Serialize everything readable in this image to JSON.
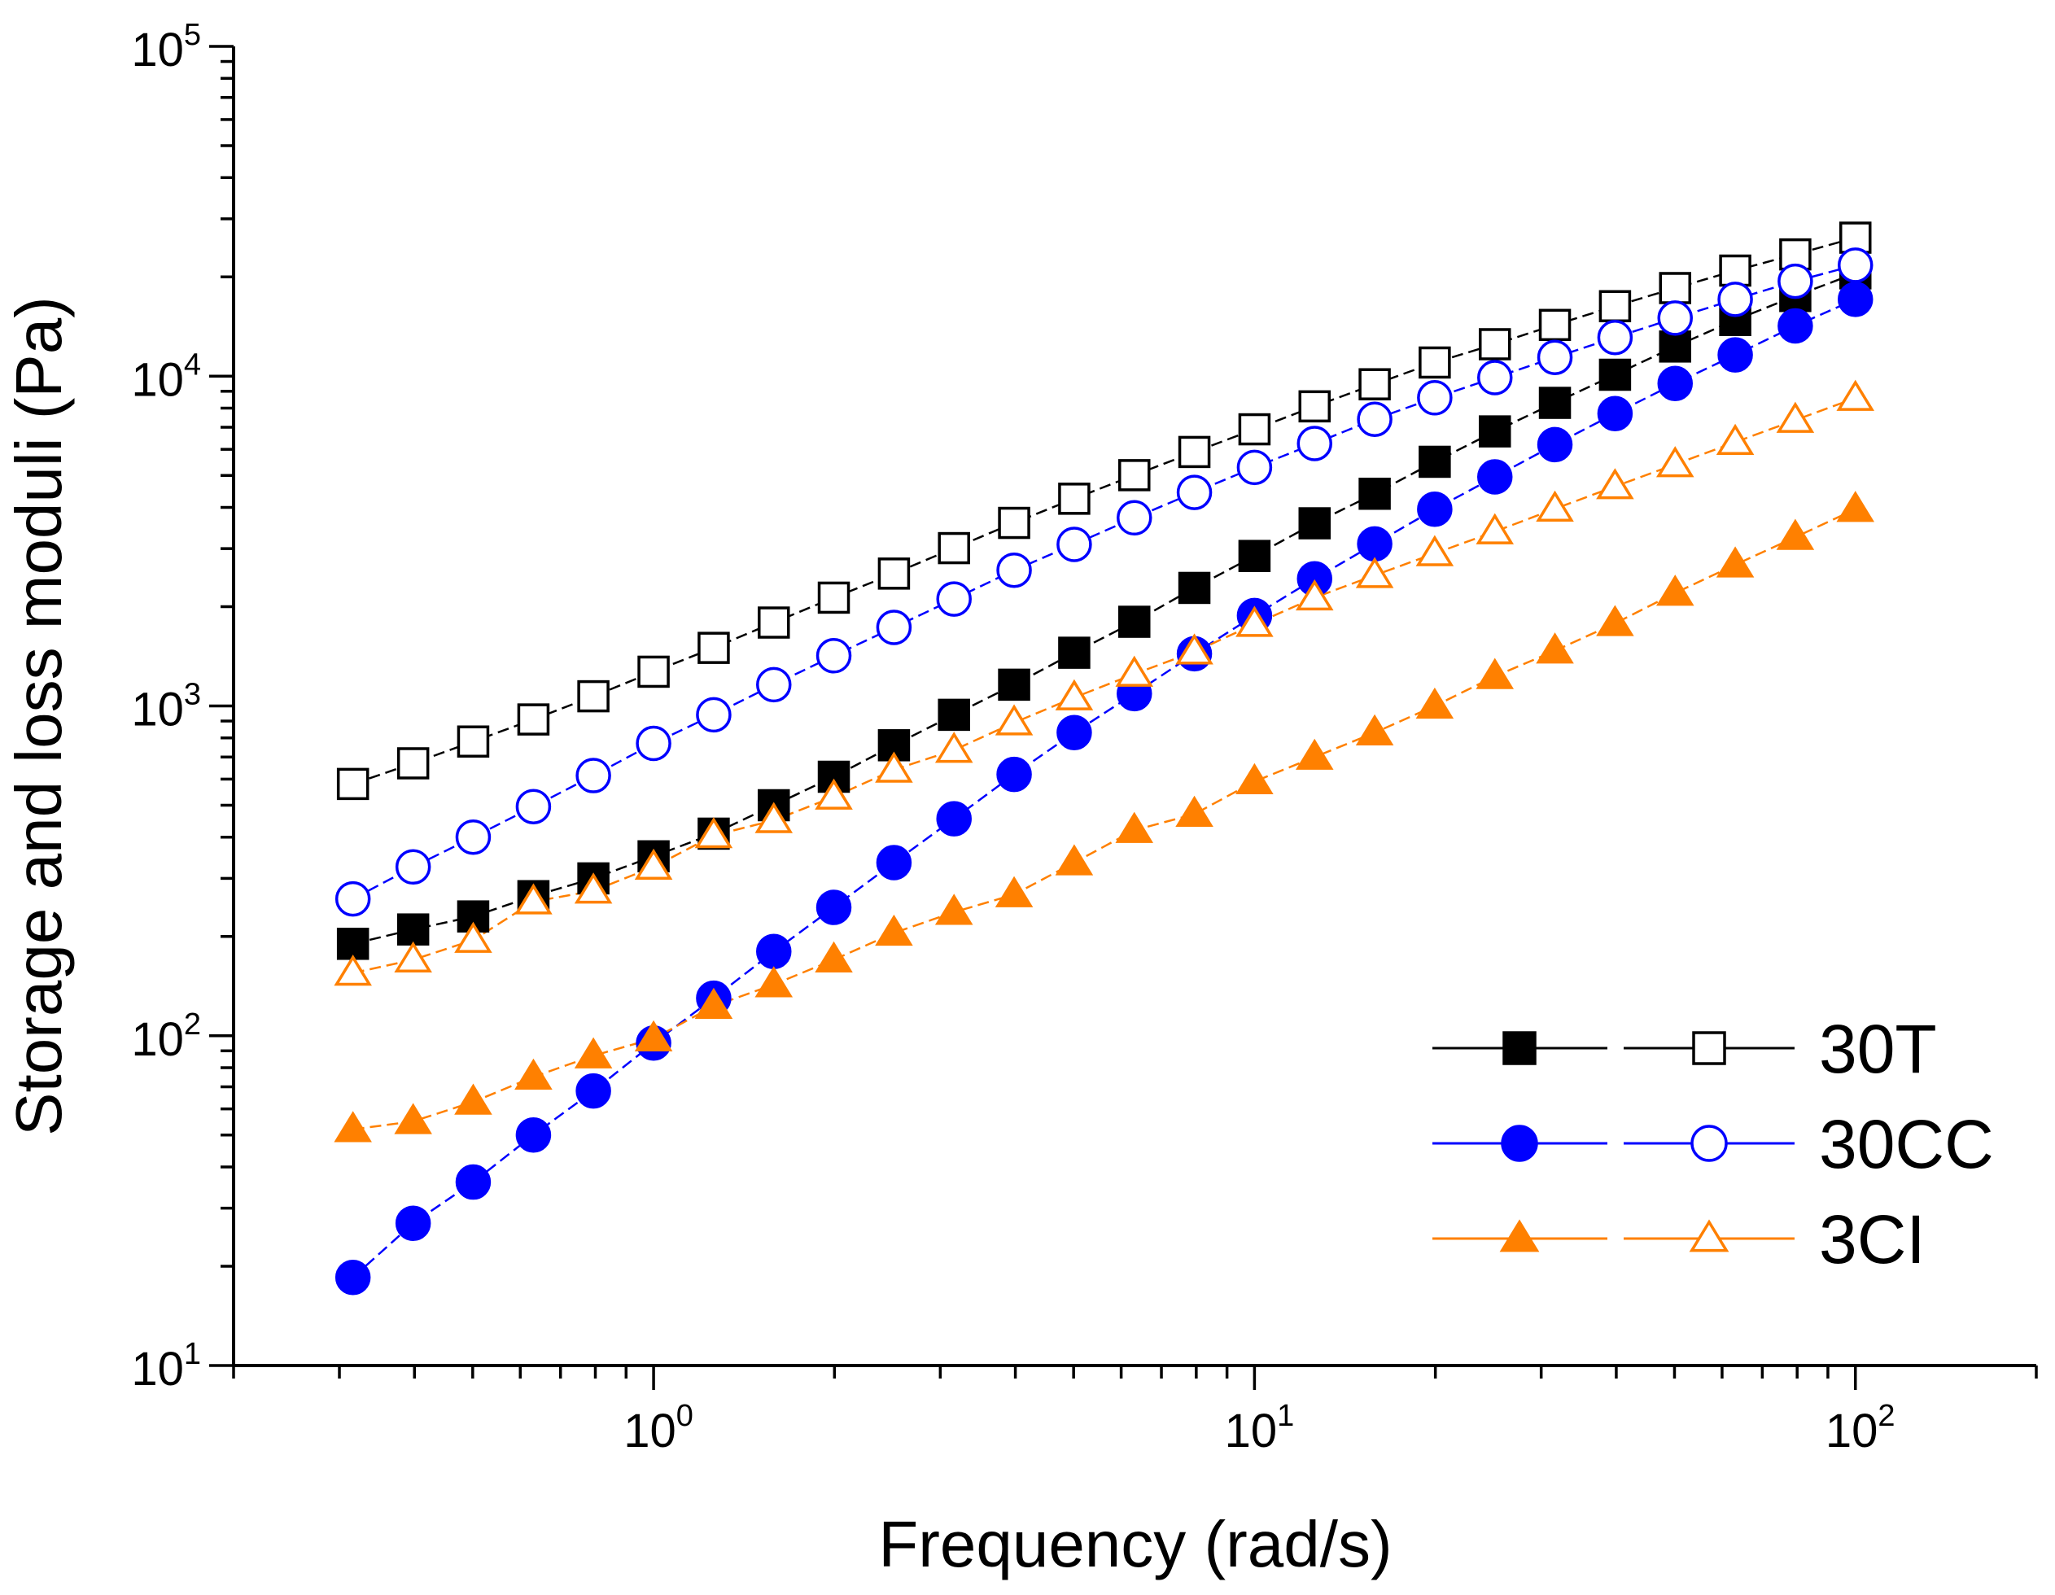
{
  "chart_data": {
    "type": "scatter",
    "title": "",
    "xlabel": "Frequency (rad/s)",
    "ylabel": "Storage and loss moduli (Pa)",
    "xscale": "log",
    "yscale": "log",
    "xlim": [
      0.2,
      200
    ],
    "ylim": [
      10,
      100000
    ],
    "x_ticks": [
      {
        "value": 1,
        "base": "10",
        "exp": "0"
      },
      {
        "value": 10,
        "base": "10",
        "exp": "1"
      },
      {
        "value": 100,
        "base": "10",
        "exp": "2"
      }
    ],
    "y_ticks": [
      {
        "value": 10,
        "base": "10",
        "exp": "1"
      },
      {
        "value": 100,
        "base": "10",
        "exp": "2"
      },
      {
        "value": 1000,
        "base": "10",
        "exp": "3"
      },
      {
        "value": 10000,
        "base": "10",
        "exp": "4"
      },
      {
        "value": 100000,
        "base": "10",
        "exp": "5"
      }
    ],
    "legend_position": "bottom-right",
    "x": [
      0.316,
      0.398,
      0.501,
      0.631,
      0.794,
      1.0,
      1.259,
      1.585,
      1.995,
      2.512,
      3.162,
      3.981,
      5.012,
      6.31,
      7.943,
      10.0,
      12.59,
      15.85,
      19.95,
      25.12,
      31.62,
      39.81,
      50.12,
      63.1,
      79.43,
      100.0
    ],
    "series": [
      {
        "name": "30T",
        "modulus": "storage",
        "marker": "square",
        "filled": true,
        "color": "#000000",
        "values": [
          190,
          210,
          230,
          265,
          300,
          350,
          410,
          500,
          610,
          760,
          940,
          1160,
          1450,
          1800,
          2280,
          2850,
          3580,
          4400,
          5500,
          6800,
          8300,
          10100,
          12300,
          14800,
          17500,
          20500
        ]
      },
      {
        "name": "30T",
        "modulus": "loss",
        "marker": "square",
        "filled": false,
        "color": "#000000",
        "values": [
          580,
          670,
          780,
          910,
          1070,
          1270,
          1500,
          1790,
          2130,
          2520,
          3010,
          3590,
          4250,
          5010,
          5890,
          6900,
          8100,
          9450,
          11000,
          12500,
          14300,
          16300,
          18500,
          20900,
          23400,
          26300
        ]
      },
      {
        "name": "30CC",
        "modulus": "storage",
        "marker": "circle",
        "filled": true,
        "color": "#0000ff",
        "values": [
          18.5,
          27,
          36,
          50,
          68,
          95,
          130,
          180,
          245,
          335,
          455,
          620,
          830,
          1090,
          1440,
          1880,
          2430,
          3100,
          3950,
          4950,
          6200,
          7700,
          9500,
          11600,
          14200,
          17100
        ]
      },
      {
        "name": "30CC",
        "modulus": "loss",
        "marker": "circle",
        "filled": false,
        "color": "#0000ff",
        "values": [
          260,
          325,
          400,
          495,
          615,
          770,
          940,
          1160,
          1420,
          1730,
          2110,
          2580,
          3090,
          3720,
          4440,
          5290,
          6250,
          7400,
          8600,
          9900,
          11400,
          13100,
          15000,
          17100,
          19400,
          21700
        ]
      },
      {
        "name": "3CI",
        "modulus": "storage",
        "marker": "triangle",
        "filled": true,
        "color": "#ff8000",
        "values": [
          52,
          55,
          63,
          75,
          87,
          98,
          123,
          143,
          170,
          205,
          237,
          268,
          335,
          420,
          470,
          590,
          700,
          830,
          1000,
          1230,
          1470,
          1780,
          2200,
          2680,
          3250,
          3950
        ]
      },
      {
        "name": "3CI",
        "modulus": "loss",
        "marker": "triangle",
        "filled": false,
        "color": "#ff8000",
        "values": [
          155,
          170,
          195,
          255,
          275,
          325,
          405,
          450,
          530,
          640,
          735,
          890,
          1060,
          1250,
          1460,
          1770,
          2130,
          2490,
          2900,
          3380,
          3960,
          4630,
          5400,
          6310,
          7360,
          8580
        ]
      }
    ],
    "legend": [
      {
        "label": "30T",
        "color": "#000000",
        "marker": "square"
      },
      {
        "label": "30CC",
        "color": "#0000ff",
        "marker": "circle"
      },
      {
        "label": "3CI",
        "color": "#ff8000",
        "marker": "triangle"
      }
    ]
  }
}
